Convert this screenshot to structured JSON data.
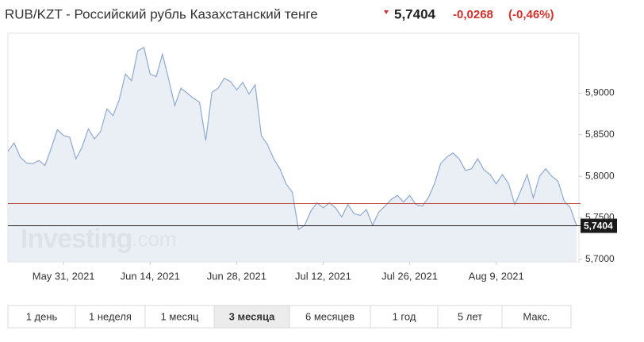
{
  "chart_data": {
    "type": "area",
    "title": "RUB/KZT - Российский рубль Казахстанский тенге",
    "last_value": {
      "value": 5.7404,
      "label": "5,7404"
    },
    "change": {
      "value": -0.0268,
      "label": "-0,0268"
    },
    "change_pct": {
      "value": -0.46,
      "label": "(-0,46%)"
    },
    "reference_line": 5.7672,
    "watermark": [
      "Investing",
      ".com"
    ],
    "line_color": "#8fa9cf",
    "fill_color": "#e5ebf3",
    "x": [
      "2021-05-22",
      "2021-05-23",
      "2021-05-24",
      "2021-05-25",
      "2021-05-26",
      "2021-05-27",
      "2021-05-28",
      "2021-05-29",
      "2021-05-30",
      "2021-05-31",
      "2021-06-01",
      "2021-06-02",
      "2021-06-03",
      "2021-06-04",
      "2021-06-05",
      "2021-06-06",
      "2021-06-07",
      "2021-06-08",
      "2021-06-09",
      "2021-06-10",
      "2021-06-11",
      "2021-06-12",
      "2021-06-13",
      "2021-06-14",
      "2021-06-15",
      "2021-06-16",
      "2021-06-17",
      "2021-06-18",
      "2021-06-19",
      "2021-06-20",
      "2021-06-21",
      "2021-06-22",
      "2021-06-23",
      "2021-06-24",
      "2021-06-25",
      "2021-06-26",
      "2021-06-27",
      "2021-06-28",
      "2021-06-29",
      "2021-06-30",
      "2021-07-01",
      "2021-07-02",
      "2021-07-03",
      "2021-07-04",
      "2021-07-05",
      "2021-07-06",
      "2021-07-07",
      "2021-07-08",
      "2021-07-09",
      "2021-07-10",
      "2021-07-11",
      "2021-07-12",
      "2021-07-13",
      "2021-07-14",
      "2021-07-15",
      "2021-07-16",
      "2021-07-17",
      "2021-07-18",
      "2021-07-19",
      "2021-07-20",
      "2021-07-21",
      "2021-07-22",
      "2021-07-23",
      "2021-07-24",
      "2021-07-25",
      "2021-07-26",
      "2021-07-27",
      "2021-07-28",
      "2021-07-29",
      "2021-07-30",
      "2021-07-31",
      "2021-08-01",
      "2021-08-02",
      "2021-08-03",
      "2021-08-04",
      "2021-08-05",
      "2021-08-06",
      "2021-08-07",
      "2021-08-08",
      "2021-08-09",
      "2021-08-10",
      "2021-08-11",
      "2021-08-12",
      "2021-08-13",
      "2021-08-14",
      "2021-08-15",
      "2021-08-16",
      "2021-08-17",
      "2021-08-18",
      "2021-08-19",
      "2021-08-20",
      "2021-08-21",
      "2021-08-22"
    ],
    "values": [
      5.83,
      5.84,
      5.823,
      5.816,
      5.815,
      5.819,
      5.813,
      5.834,
      5.856,
      5.849,
      5.847,
      5.821,
      5.835,
      5.857,
      5.845,
      5.854,
      5.881,
      5.873,
      5.892,
      5.923,
      5.915,
      5.951,
      5.955,
      5.923,
      5.92,
      5.947,
      5.917,
      5.885,
      5.906,
      5.9,
      5.894,
      5.889,
      5.843,
      5.901,
      5.906,
      5.918,
      5.914,
      5.904,
      5.913,
      5.899,
      5.91,
      5.849,
      5.838,
      5.821,
      5.809,
      5.791,
      5.781,
      5.736,
      5.741,
      5.758,
      5.768,
      5.762,
      5.768,
      5.762,
      5.751,
      5.766,
      5.755,
      5.753,
      5.76,
      5.741,
      5.757,
      5.764,
      5.772,
      5.777,
      5.769,
      5.777,
      5.766,
      5.764,
      5.774,
      5.791,
      5.815,
      5.823,
      5.828,
      5.821,
      5.807,
      5.809,
      5.821,
      5.808,
      5.802,
      5.791,
      5.802,
      5.791,
      5.766,
      5.783,
      5.802,
      5.774,
      5.8,
      5.809,
      5.8,
      5.794,
      5.77,
      5.762,
      5.7404
    ],
    "xlim": [
      "2021-05-22",
      "2021-08-22"
    ],
    "xticks": [
      {
        "value": "2021-05-31",
        "label": "May 31, 2021"
      },
      {
        "value": "2021-06-14",
        "label": "Jun 14, 2021"
      },
      {
        "value": "2021-06-28",
        "label": "Jun 28, 2021"
      },
      {
        "value": "2021-07-12",
        "label": "Jul 12, 2021"
      },
      {
        "value": "2021-07-26",
        "label": "Jul 26, 2021"
      },
      {
        "value": "2021-08-09",
        "label": "Aug 9, 2021"
      }
    ],
    "ylim": [
      5.697,
      5.972
    ],
    "yticks": [
      {
        "value": 5.7,
        "label": "5,7000"
      },
      {
        "value": 5.75,
        "label": "5,7500"
      },
      {
        "value": 5.8,
        "label": "5,8000"
      },
      {
        "value": 5.85,
        "label": "5,8500"
      },
      {
        "value": 5.9,
        "label": "5,9000"
      }
    ],
    "grid": false,
    "periods": [
      "1 день",
      "1 неделя",
      "1 месяц",
      "3 месяца",
      "6 месяцев",
      "1 год",
      "5 лет",
      "Макс."
    ],
    "active_period": 3
  }
}
